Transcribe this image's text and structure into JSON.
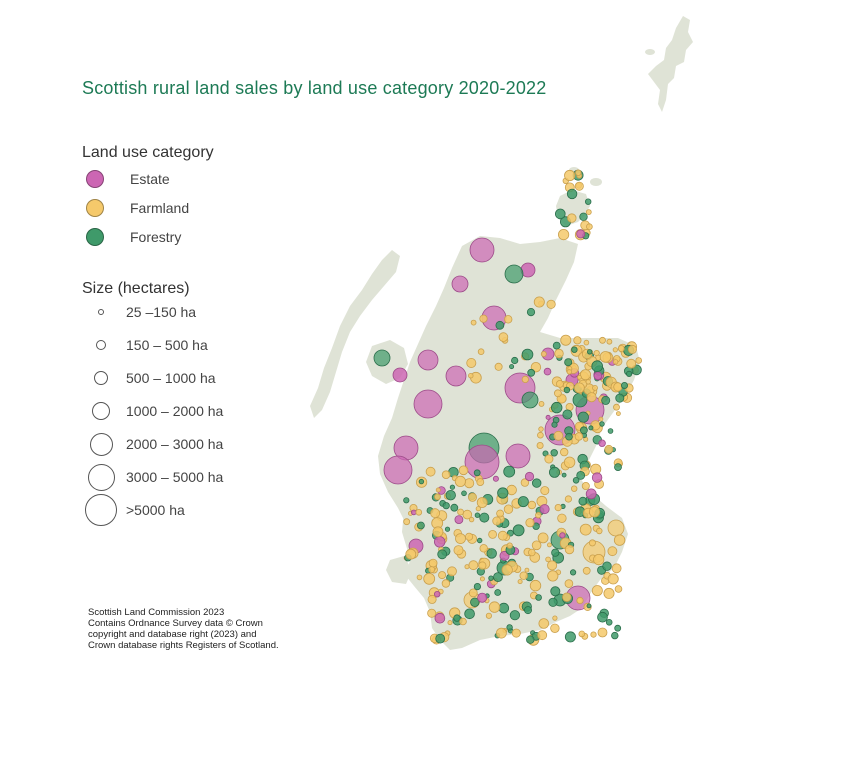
{
  "title": "Scottish rural land sales by land use category 2020-2022",
  "legend": {
    "category_heading": "Land use category",
    "categories": [
      {
        "label": "Estate",
        "color": "#cc66b3",
        "icon": "estate-circle"
      },
      {
        "label": "Farmland",
        "color": "#f5c96b",
        "icon": "farmland-circle"
      },
      {
        "label": "Forestry",
        "color": "#3f9a6a",
        "icon": "forestry-circle"
      }
    ],
    "size_heading": "Size (hectares)",
    "sizes": [
      {
        "label": "25 –150 ha"
      },
      {
        "label": "150 – 500 ha"
      },
      {
        "label": "500 – 1000 ha"
      },
      {
        "label": "1000 – 2000 ha"
      },
      {
        "label": "2000 – 3000 ha"
      },
      {
        "label": "3000 – 5000 ha"
      },
      {
        "label": ">5000 ha"
      }
    ]
  },
  "credits": {
    "lines": [
      "Scottish Land Commission 2023",
      "Contains Ordnance Survey data © Crown",
      "copyright and database right (2023) and",
      "Crown database rights Registers of Scotland."
    ]
  },
  "map": {
    "land_color": "#dfe3d6"
  }
}
